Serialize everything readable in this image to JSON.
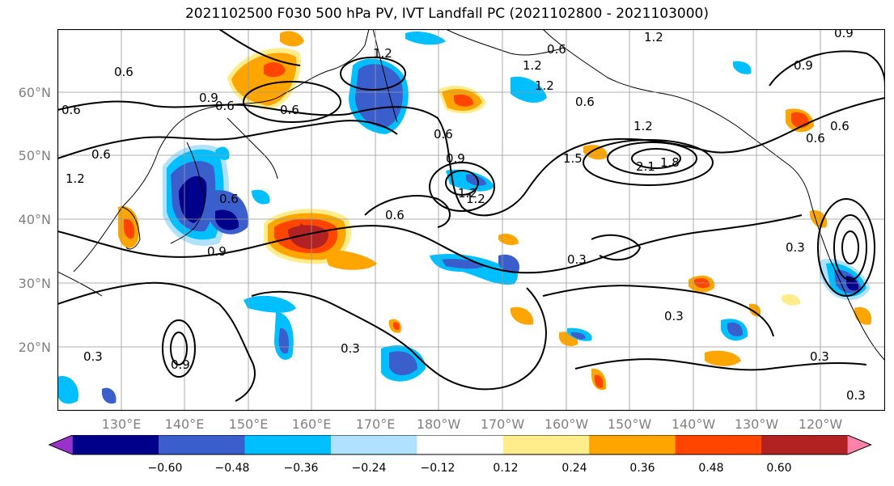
{
  "title": "2021102500 F030 500 hPa PV, IVT Landfall PC (2021102800 - 2021103000)",
  "map": {
    "lat_labels": [
      "60°N",
      "50°N",
      "40°N",
      "30°N",
      "20°N"
    ],
    "lon_labels": [
      "130°E",
      "140°E",
      "150°E",
      "160°E",
      "170°E",
      "180°W",
      "170°W",
      "160°W",
      "150°W",
      "140°W",
      "130°W",
      "120°W"
    ],
    "contour_labels": [
      "0.6",
      "0.6",
      "0.6",
      "0.6",
      "1.2",
      "1.2",
      "1.2",
      "0.6",
      "0.9",
      "0.6",
      "0.9",
      "0.6",
      "1.2",
      "0.6",
      "0.9",
      "1.2",
      "1.5",
      "2.1",
      "1.8",
      "1.2",
      "0.3",
      "0.3",
      "0.3",
      "0.3",
      "0.3",
      "0.3",
      "0.9",
      "0.6",
      "0.6",
      "0.9",
      "0.6",
      "0.9",
      "1.2",
      "0.3",
      "0.6",
      "1.2"
    ]
  },
  "colorbar": {
    "ticks": [
      "−0.60",
      "−0.48",
      "−0.36",
      "−0.24",
      "−0.12",
      "0.12",
      "0.24",
      "0.36",
      "0.48",
      "0.60"
    ],
    "colors": [
      "#9932cc",
      "#00008b",
      "#3a5fcd",
      "#00bfff",
      "#b0e2ff",
      "#ffffff",
      "#ffec8b",
      "#ffa500",
      "#ff4500",
      "#b22222",
      "#ff82ab"
    ]
  }
}
